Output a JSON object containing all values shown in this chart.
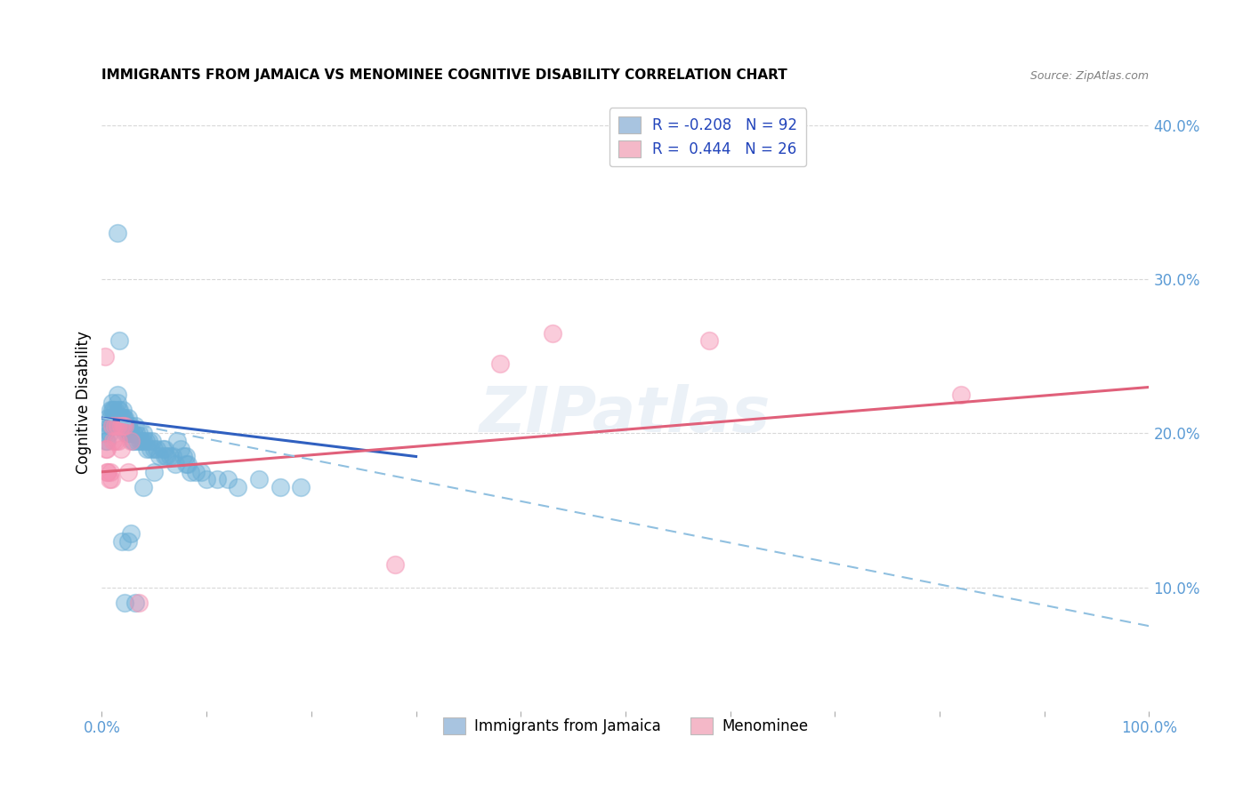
{
  "title": "IMMIGRANTS FROM JAMAICA VS MENOMINEE COGNITIVE DISABILITY CORRELATION CHART",
  "source": "Source: ZipAtlas.com",
  "ylabel": "Cognitive Disability",
  "right_yticks": [
    "10.0%",
    "20.0%",
    "30.0%",
    "40.0%"
  ],
  "right_ytick_vals": [
    0.1,
    0.2,
    0.3,
    0.4
  ],
  "legend_entry1": "R = -0.208   N = 92",
  "legend_entry2": "R =  0.444   N = 26",
  "legend_color1": "#a8c4e0",
  "legend_color2": "#f4b8c8",
  "blue_color": "#6aaed6",
  "pink_color": "#f48fb1",
  "blue_line_color": "#3060c0",
  "pink_line_color": "#e0607a",
  "dashed_line_color": "#90c0e0",
  "xlim": [
    0.0,
    1.0
  ],
  "ylim": [
    0.02,
    0.42
  ],
  "blue_scatter_x": [
    0.003,
    0.004,
    0.005,
    0.006,
    0.007,
    0.007,
    0.008,
    0.008,
    0.009,
    0.01,
    0.01,
    0.011,
    0.011,
    0.012,
    0.012,
    0.013,
    0.013,
    0.014,
    0.015,
    0.015,
    0.016,
    0.016,
    0.017,
    0.017,
    0.018,
    0.018,
    0.019,
    0.02,
    0.02,
    0.021,
    0.021,
    0.022,
    0.022,
    0.023,
    0.024,
    0.025,
    0.025,
    0.026,
    0.027,
    0.028,
    0.028,
    0.029,
    0.03,
    0.03,
    0.032,
    0.033,
    0.034,
    0.035,
    0.036,
    0.038,
    0.04,
    0.04,
    0.042,
    0.043,
    0.045,
    0.046,
    0.048,
    0.05,
    0.052,
    0.055,
    0.058,
    0.06,
    0.062,
    0.065,
    0.068,
    0.07,
    0.072,
    0.075,
    0.078,
    0.08,
    0.082,
    0.085,
    0.09,
    0.095,
    0.1,
    0.11,
    0.12,
    0.13,
    0.15,
    0.17,
    0.19,
    0.015,
    0.017,
    0.019,
    0.022,
    0.025,
    0.028,
    0.032,
    0.04,
    0.05,
    0.06,
    0.08
  ],
  "blue_scatter_y": [
    0.2,
    0.195,
    0.195,
    0.21,
    0.205,
    0.2,
    0.215,
    0.21,
    0.205,
    0.22,
    0.215,
    0.215,
    0.21,
    0.215,
    0.21,
    0.21,
    0.205,
    0.205,
    0.225,
    0.22,
    0.215,
    0.21,
    0.215,
    0.21,
    0.21,
    0.205,
    0.205,
    0.215,
    0.21,
    0.21,
    0.205,
    0.21,
    0.205,
    0.2,
    0.2,
    0.21,
    0.205,
    0.2,
    0.2,
    0.205,
    0.2,
    0.195,
    0.2,
    0.195,
    0.205,
    0.2,
    0.195,
    0.2,
    0.195,
    0.195,
    0.2,
    0.195,
    0.195,
    0.19,
    0.195,
    0.19,
    0.195,
    0.19,
    0.19,
    0.185,
    0.19,
    0.19,
    0.185,
    0.185,
    0.185,
    0.18,
    0.195,
    0.19,
    0.185,
    0.185,
    0.18,
    0.175,
    0.175,
    0.175,
    0.17,
    0.17,
    0.17,
    0.165,
    0.17,
    0.165,
    0.165,
    0.33,
    0.26,
    0.13,
    0.09,
    0.13,
    0.135,
    0.09,
    0.165,
    0.175,
    0.185,
    0.18
  ],
  "pink_scatter_x": [
    0.003,
    0.004,
    0.005,
    0.005,
    0.006,
    0.007,
    0.008,
    0.009,
    0.01,
    0.011,
    0.012,
    0.013,
    0.015,
    0.016,
    0.018,
    0.018,
    0.02,
    0.022,
    0.025,
    0.028,
    0.035,
    0.28,
    0.38,
    0.43,
    0.58,
    0.82
  ],
  "pink_scatter_y": [
    0.25,
    0.19,
    0.19,
    0.175,
    0.175,
    0.17,
    0.175,
    0.17,
    0.205,
    0.195,
    0.205,
    0.195,
    0.205,
    0.195,
    0.205,
    0.19,
    0.205,
    0.205,
    0.175,
    0.195,
    0.09,
    0.115,
    0.245,
    0.265,
    0.26,
    0.225
  ],
  "blue_line_x": [
    0.0,
    0.3
  ],
  "blue_line_y": [
    0.21,
    0.185
  ],
  "pink_line_x": [
    0.0,
    1.0
  ],
  "pink_line_y": [
    0.175,
    0.23
  ],
  "dashed_line_x": [
    0.0,
    1.0
  ],
  "dashed_line_y": [
    0.21,
    0.075
  ],
  "background_color": "#ffffff",
  "grid_color": "#d8d8d8"
}
